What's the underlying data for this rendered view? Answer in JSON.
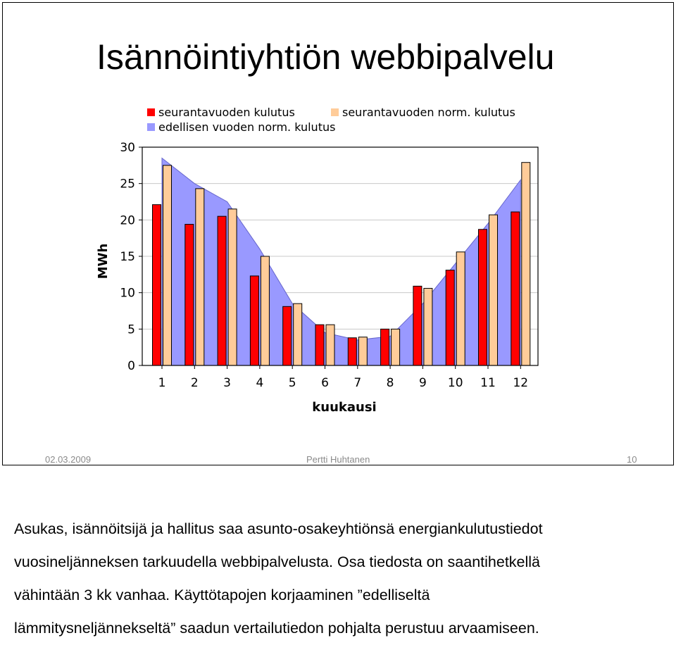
{
  "slide": {
    "title": "Isännöintiyhtiön webbipalvelu",
    "footer": {
      "date": "02.03.2009",
      "author": "Pertti Huhtanen",
      "page": "10"
    }
  },
  "caption": {
    "lines": [
      "Asukas, isännöitsijä ja hallitus saa asunto-osakeyhtiönsä energiankulutustiedot",
      "vuosineljänneksen tarkuudella webbipalvelusta. Osa tiedosta on saantihetkellä",
      "vähintään 3 kk vanhaa. Käyttötapojen korjaaminen ”edelliseltä",
      "lämmitysneljännekseltä” saadun vertailutiedon pohjalta perustuu arvaamiseen."
    ]
  },
  "chart_data": {
    "type": "bar",
    "xlabel": "kuukausi",
    "ylabel": "MWh",
    "ylim": [
      0,
      30
    ],
    "yticks": [
      0,
      5,
      10,
      15,
      20,
      25,
      30
    ],
    "grid": true,
    "legend_position": "top",
    "categories": [
      "1",
      "2",
      "3",
      "4",
      "5",
      "6",
      "7",
      "8",
      "9",
      "10",
      "11",
      "12"
    ],
    "series": [
      {
        "name": "seurantavuoden kulutus",
        "type": "bar",
        "color": "#ff0000",
        "values": [
          22.1,
          19.4,
          20.5,
          12.3,
          8.1,
          5.6,
          3.8,
          5.0,
          10.9,
          13.1,
          18.7,
          21.1
        ]
      },
      {
        "name": "seurantavuoden norm. kulutus",
        "type": "bar",
        "color": "#ffcc99",
        "values": [
          27.5,
          24.3,
          21.5,
          15.0,
          8.5,
          5.6,
          3.9,
          5.0,
          10.6,
          15.6,
          20.7,
          27.9
        ]
      },
      {
        "name": "edellisen vuoden norm. kulutus",
        "type": "area",
        "color": "#9999ff",
        "values": [
          28.5,
          25.0,
          22.5,
          16.0,
          8.5,
          4.5,
          3.5,
          4.0,
          8.5,
          14.0,
          19.5,
          25.5
        ]
      }
    ]
  }
}
